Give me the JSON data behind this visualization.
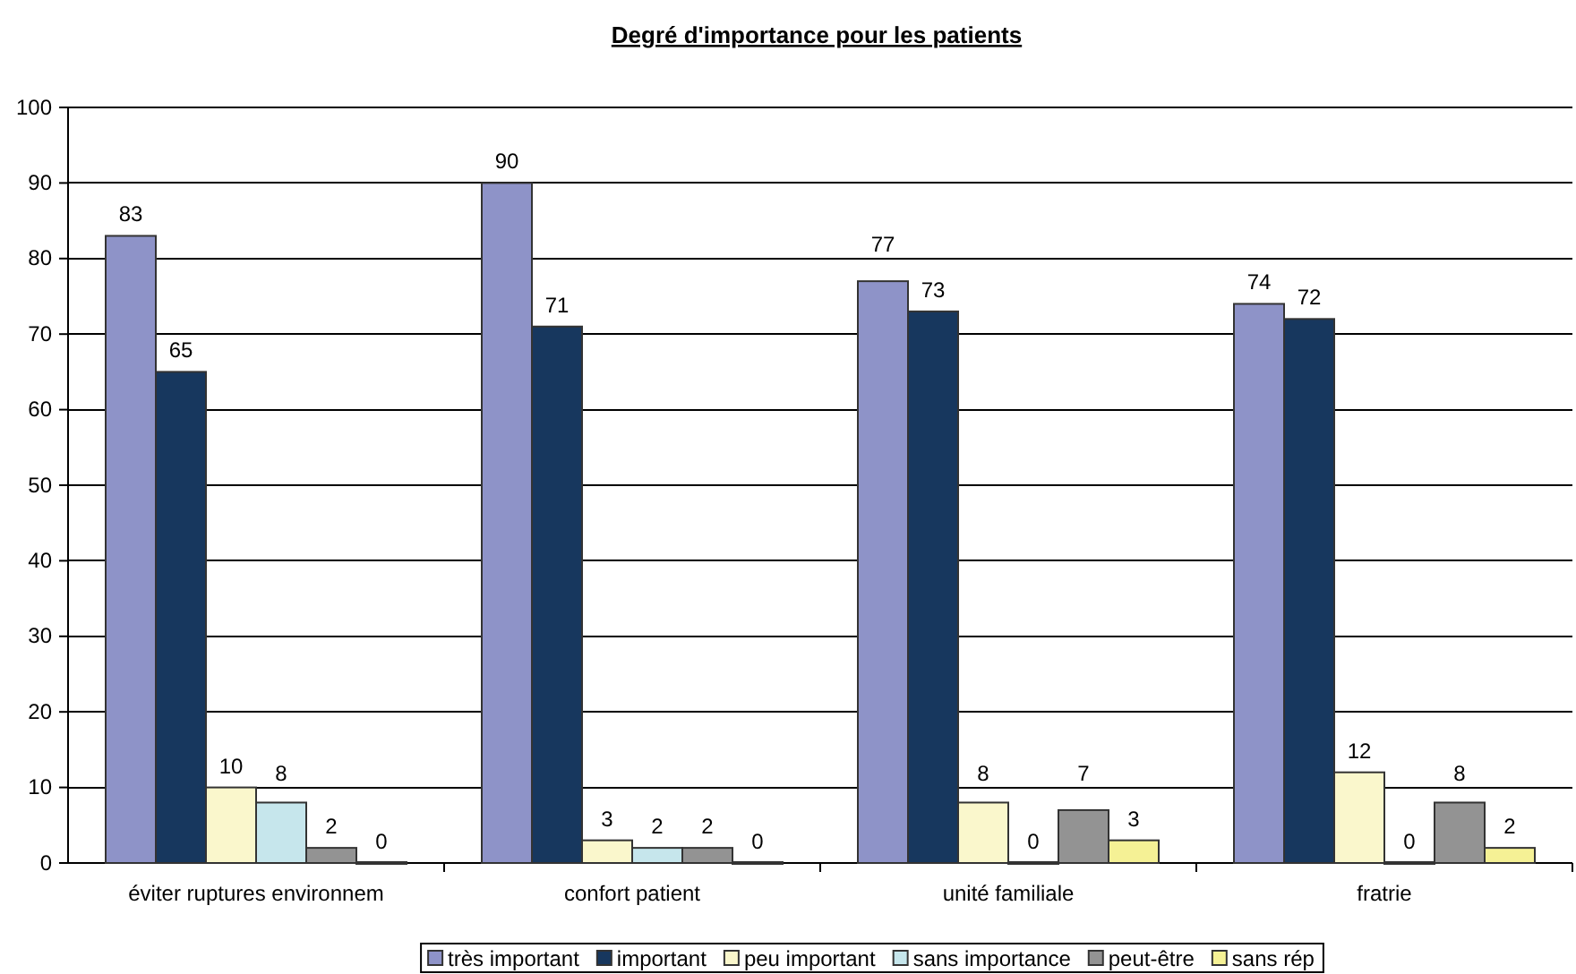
{
  "chart_data": {
    "type": "bar",
    "title": "Degré d'importance pour les patients",
    "categories": [
      "éviter ruptures environnem",
      "confort patient",
      "unité familiale",
      "fratrie"
    ],
    "series": [
      {
        "name": "très important",
        "color": "#8e93c8",
        "values": [
          83,
          90,
          77,
          74
        ]
      },
      {
        "name": "important",
        "color": "#17375e",
        "values": [
          65,
          71,
          73,
          72
        ]
      },
      {
        "name": "peu important",
        "color": "#faf7cc",
        "values": [
          10,
          3,
          8,
          12
        ]
      },
      {
        "name": "sans importance",
        "color": "#c6e6ec",
        "values": [
          8,
          2,
          0,
          0
        ]
      },
      {
        "name": "peut-être",
        "color": "#939393",
        "values": [
          2,
          2,
          7,
          8
        ]
      },
      {
        "name": "sans rép",
        "color": "#f5f195",
        "values": [
          0,
          0,
          3,
          2
        ]
      }
    ],
    "ylim": [
      0,
      100
    ],
    "yticks": [
      0,
      10,
      20,
      30,
      40,
      50,
      60,
      70,
      80,
      90,
      100
    ],
    "grid": "y",
    "legend": "bottom",
    "data_labels": true
  }
}
